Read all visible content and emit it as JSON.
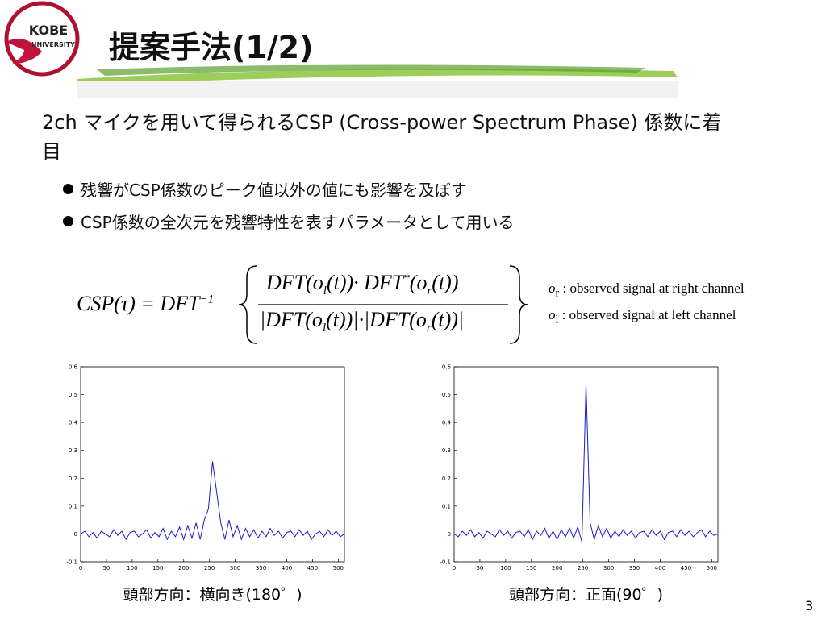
{
  "header": {
    "title": "提案手法(1/2)",
    "logo": [
      "KOBE",
      "UNIVERSITY"
    ]
  },
  "body": {
    "intro": "2ch マイクを用いて得られるCSP (Cross-power Spectrum Phase) 係数に着目",
    "bullets": [
      "残響がCSP係数のピーク値以外の値にも影響を及ぼす",
      "CSP係数の全次元を残響特性を表すパラメータとして用いる"
    ]
  },
  "formula": {
    "lhs": "CSP(τ) = DFT",
    "lhs_sup": "−1",
    "numerator": [
      "DFT(o",
      "l",
      "(t))· DFT",
      "*",
      "(o",
      "r",
      "(t))"
    ],
    "denominator": [
      "|DFT(o",
      "l",
      "(t))|·|DFT(o",
      "r",
      "(t))|"
    ]
  },
  "legend": [
    {
      "symbol": "o",
      "sub": "r",
      "text": " : observed signal at right channel"
    },
    {
      "symbol": "o",
      "sub": "l",
      "text": " : observed signal at left channel"
    }
  ],
  "chart_data": [
    {
      "type": "line",
      "title": "頭部方向：横向き(180゜)",
      "xlim": [
        0,
        512
      ],
      "ylim": [
        -0.1,
        0.6
      ],
      "xticks": [
        0,
        50,
        100,
        150,
        200,
        250,
        300,
        350,
        400,
        450,
        500
      ],
      "yticks": [
        -0.1,
        0,
        0.1,
        0.2,
        0.3,
        0.4,
        0.5,
        0.6
      ],
      "x": [
        0,
        8,
        16,
        24,
        32,
        40,
        48,
        56,
        64,
        72,
        80,
        88,
        96,
        104,
        112,
        120,
        128,
        136,
        144,
        152,
        160,
        168,
        176,
        184,
        192,
        200,
        208,
        216,
        224,
        232,
        240,
        248,
        256,
        264,
        272,
        280,
        288,
        296,
        304,
        312,
        320,
        328,
        336,
        344,
        352,
        360,
        368,
        376,
        384,
        392,
        400,
        408,
        416,
        424,
        432,
        440,
        448,
        456,
        464,
        472,
        480,
        488,
        496,
        504,
        512
      ],
      "series": [
        {
          "color": "#1c1cc8",
          "values": [
            0,
            0.01,
            -0.01,
            0.005,
            -0.015,
            0.01,
            0,
            -0.01,
            0.015,
            -0.005,
            0.01,
            -0.02,
            0.005,
            0.01,
            -0.01,
            0,
            0.015,
            -0.015,
            0.005,
            -0.01,
            0.02,
            -0.02,
            0.01,
            -0.01,
            0.025,
            -0.02,
            0.03,
            -0.015,
            0.04,
            -0.02,
            0.05,
            0.09,
            0.26,
            0.15,
            0.04,
            -0.02,
            0.05,
            -0.01,
            0.03,
            -0.02,
            0.02,
            -0.01,
            0.015,
            -0.015,
            0.01,
            -0.01,
            0.02,
            -0.005,
            0.01,
            -0.015,
            0.005,
            0.01,
            -0.01,
            0.015,
            -0.005,
            0.01,
            -0.02,
            0,
            0.01,
            -0.01,
            0.015,
            -0.005,
            0.01,
            -0.01,
            0
          ]
        }
      ]
    },
    {
      "type": "line",
      "title": "頭部方向：正面(90゜)",
      "xlim": [
        0,
        512
      ],
      "ylim": [
        -0.1,
        0.6
      ],
      "xticks": [
        0,
        50,
        100,
        150,
        200,
        250,
        300,
        350,
        400,
        450,
        500
      ],
      "yticks": [
        -0.1,
        0,
        0.1,
        0.2,
        0.3,
        0.4,
        0.5,
        0.6
      ],
      "x": [
        0,
        8,
        16,
        24,
        32,
        40,
        48,
        56,
        64,
        72,
        80,
        88,
        96,
        104,
        112,
        120,
        128,
        136,
        144,
        152,
        160,
        168,
        176,
        184,
        192,
        200,
        208,
        216,
        224,
        232,
        240,
        248,
        256,
        264,
        272,
        280,
        288,
        296,
        304,
        312,
        320,
        328,
        336,
        344,
        352,
        360,
        368,
        376,
        384,
        392,
        400,
        408,
        416,
        424,
        432,
        440,
        448,
        456,
        464,
        472,
        480,
        488,
        496,
        504,
        512
      ],
      "series": [
        {
          "color": "#1c1cc8",
          "values": [
            0,
            -0.01,
            0.01,
            -0.005,
            0.015,
            -0.01,
            0.005,
            -0.015,
            0.01,
            0,
            -0.01,
            0.015,
            -0.005,
            0.01,
            -0.015,
            0.005,
            0.01,
            -0.01,
            0.015,
            -0.02,
            0.01,
            -0.005,
            0.02,
            -0.015,
            0.01,
            -0.02,
            0.015,
            -0.01,
            0.02,
            -0.015,
            0.025,
            -0.03,
            0.54,
            0.04,
            -0.02,
            0.03,
            -0.01,
            0.02,
            -0.015,
            0.01,
            -0.01,
            0.015,
            -0.005,
            0.01,
            -0.015,
            0.005,
            0.01,
            -0.01,
            0.015,
            -0.005,
            0.01,
            -0.02,
            0.005,
            0.01,
            -0.01,
            0.015,
            -0.005,
            0.01,
            -0.01,
            0.005,
            0.015,
            -0.01,
            0.01,
            -0.005,
            0
          ]
        }
      ]
    }
  ],
  "page_number": "3"
}
